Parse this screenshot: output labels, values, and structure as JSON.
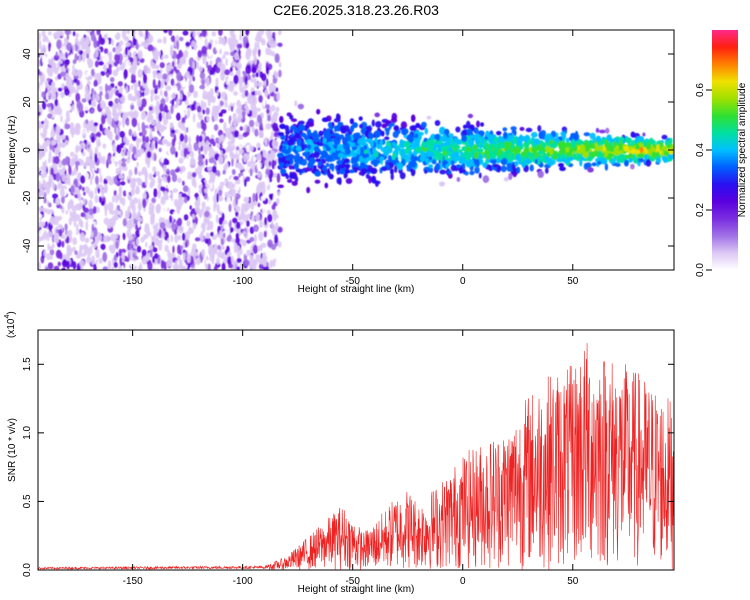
{
  "title": "C2E6.2025.318.23.26.R03",
  "colors": {
    "snr_line": "#ee2222",
    "cmap": [
      "#ffffff",
      "#dcc8f4",
      "#a070e6",
      "#7a2ee0",
      "#5a00e0",
      "#2a10f0",
      "#0060ff",
      "#00c0ff",
      "#00e0a0",
      "#30e030",
      "#a0e000",
      "#f0e000",
      "#ff8000",
      "#ff2010",
      "#ff2a8a"
    ]
  },
  "chart_data": [
    {
      "type": "heatmap",
      "title": "C2E6.2025.318.23.26.R03",
      "xlabel": "Height of straight line (km)",
      "ylabel": "Frequency (Hz)",
      "xlim": [
        -193,
        96
      ],
      "ylim": [
        -50,
        50
      ],
      "xticks": [
        -150,
        -100,
        -50,
        0,
        50
      ],
      "yticks": [
        -40,
        -20,
        0,
        20,
        40
      ],
      "colorbar": {
        "label": "Normalized spectral amplitude",
        "range": [
          0,
          0.8
        ],
        "ticks": [
          "0.0",
          "0.2",
          "0.4",
          "0.6"
        ]
      },
      "regions": [
        {
          "name": "noise",
          "x_range": [
            -193,
            -83
          ],
          "freq_range": [
            -50,
            50
          ],
          "amplitude": [
            0.05,
            0.25
          ]
        },
        {
          "name": "signal",
          "x_range": [
            -83,
            96
          ],
          "center_freq": 0,
          "half_width_hz": [
            14,
            4
          ],
          "amplitude": [
            0.15,
            0.6
          ]
        }
      ]
    },
    {
      "type": "line",
      "xlabel": "Height of straight line (km)",
      "ylabel": "SNR (10 * v/v)",
      "y_multiplier": "(x10",
      "y_multiplier_exp": "4",
      "y_multiplier_close": ")",
      "xlim": [
        -193,
        96
      ],
      "ylim": [
        0,
        1.75
      ],
      "xticks": [
        -150,
        -100,
        -50,
        0,
        50
      ],
      "yticks": [
        "0.0",
        "0.5",
        "1.0",
        "1.5"
      ],
      "series": [
        {
          "name": "SNR",
          "envelope_x": [
            -193,
            -90,
            -80,
            -70,
            -60,
            -55,
            -50,
            -45,
            -40,
            -35,
            -30,
            -25,
            -20,
            -10,
            0,
            10,
            20,
            30,
            40,
            50,
            55,
            60,
            70,
            80,
            90,
            96
          ],
          "envelope_y": [
            0.02,
            0.03,
            0.1,
            0.25,
            0.4,
            0.48,
            0.38,
            0.28,
            0.35,
            0.45,
            0.55,
            0.6,
            0.5,
            0.65,
            0.85,
            0.95,
            1.05,
            1.3,
            1.45,
            1.5,
            1.7,
            1.65,
            1.55,
            1.45,
            1.3,
            1.25
          ]
        }
      ]
    }
  ]
}
